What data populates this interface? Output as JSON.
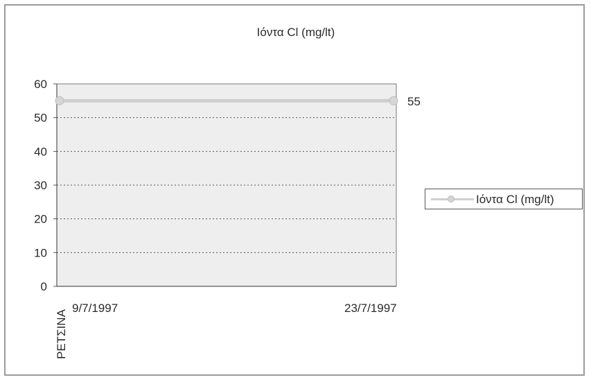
{
  "chart_data": {
    "type": "line",
    "title": "Ιόντα Cl (mg/lt)",
    "xlabel": "",
    "ylabel": "",
    "category_label": "ΡΕΤΣΙΝΑ",
    "categories": [
      "9/7/1997",
      "23/7/1997"
    ],
    "series": [
      {
        "name": "Ιόντα Cl (mg/lt)",
        "values": [
          55,
          55
        ],
        "color": "#cfcfcf"
      }
    ],
    "data_labels": [
      "55"
    ],
    "ylim": [
      0,
      60
    ],
    "yticks": [
      0,
      10,
      20,
      30,
      40,
      50,
      60
    ],
    "grid": true,
    "legend_position": "right",
    "plot_background": "#eeeeee"
  }
}
